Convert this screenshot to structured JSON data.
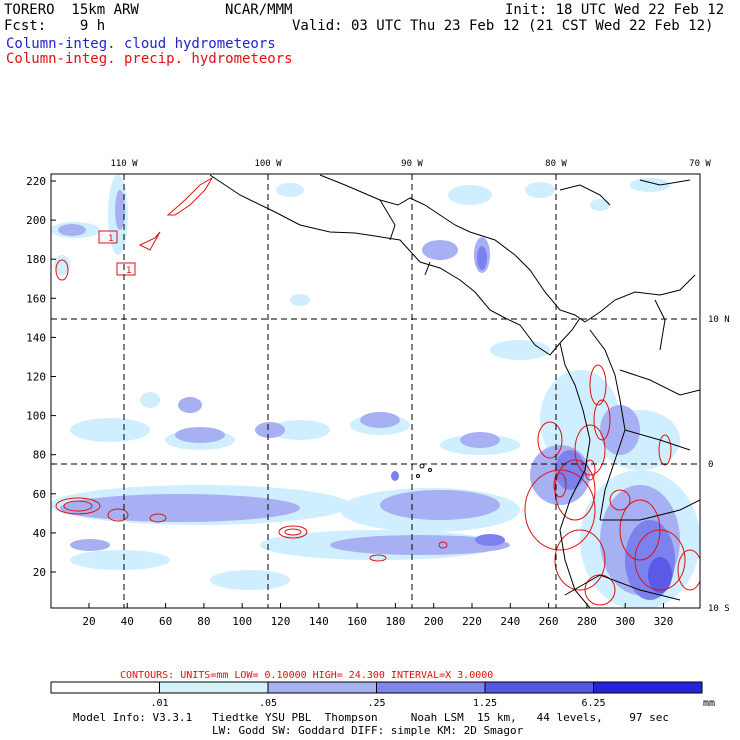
{
  "header": {
    "model": "TORERO  15km ARW",
    "org": "NCAR/MMM",
    "init": "Init: 18 UTC Wed 22 Feb 12",
    "fcst": "Fcst:    9 h",
    "valid": "Valid: 03 UTC Thu 23 Feb 12 (21 CST Wed 22 Feb 12)",
    "field1": "Column-integ. cloud hydrometeors",
    "field2": "Column-integ. precip. hydrometeors"
  },
  "map": {
    "lon_labels": [
      "110 W",
      "100 W",
      "90 W",
      "80 W",
      "70 W"
    ],
    "lat_labels": [
      "10 N",
      "0",
      "10 S"
    ],
    "y_ticks": [
      "220",
      "200",
      "180",
      "160",
      "140",
      "120",
      "100",
      "80",
      "60",
      "40",
      "20"
    ],
    "x_ticks": [
      "20",
      "40",
      "60",
      "80",
      "100",
      "120",
      "140",
      "160",
      "180",
      "200",
      "220",
      "240",
      "260",
      "280",
      "300",
      "320"
    ],
    "box_labels": [
      "1",
      "1"
    ],
    "colors": {
      "fill_light": "#cfeeff",
      "fill_mid": "#a8b0f4",
      "fill_dark": "#7b82ee",
      "fill_darker": "#5a5ae6",
      "contour": "#dd1111",
      "coast": "#000000"
    }
  },
  "contours": {
    "text": "CONTOURS:  UNITS=mm  LOW= 0.10000     HIGH=  24.300     INTERVAL=X  3.0000"
  },
  "colorbar": {
    "labels": [
      ".01",
      ".05",
      ".25",
      "1.25",
      "6.25"
    ],
    "unit": "mm",
    "colors": [
      "#ffffff",
      "#d2f2f8",
      "#a9b2f0",
      "#7f87ec",
      "#5458e4",
      "#2424dd"
    ]
  },
  "footer": {
    "line1": "Model Info: V3.3.1   Tiedtke YSU PBL  Thompson     Noah LSM  15 km,   44 levels,    97 sec",
    "line2": "LW: Godd SW: Goddard DIFF: simple KM: 2D Smagor"
  }
}
